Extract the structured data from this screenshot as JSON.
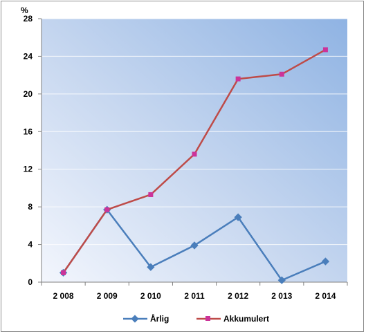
{
  "chart_data": {
    "type": "line",
    "title": "",
    "ylabel": "%",
    "xlabel": "",
    "categories": [
      "2 008",
      "2 009",
      "2 010",
      "2 011",
      "2 012",
      "2 013",
      "2 014"
    ],
    "ylim": [
      0,
      28
    ],
    "yticks": [
      "0",
      "4",
      "8",
      "12",
      "16",
      "20",
      "24",
      "28"
    ],
    "ytick_values": [
      0,
      4,
      8,
      12,
      16,
      20,
      24,
      28
    ],
    "grid": true,
    "legend_position": "bottom",
    "series": [
      {
        "name": "Årlig",
        "values": [
          1.0,
          7.7,
          1.6,
          3.9,
          6.9,
          0.2,
          2.2
        ],
        "color": "#4a7ebb",
        "marker": "diamond"
      },
      {
        "name": "Akkumulert",
        "values": [
          1.0,
          7.7,
          9.3,
          13.6,
          21.6,
          22.1,
          24.7
        ],
        "color": "#be4b48",
        "marker_color": "#cc3399",
        "marker": "square"
      }
    ]
  }
}
